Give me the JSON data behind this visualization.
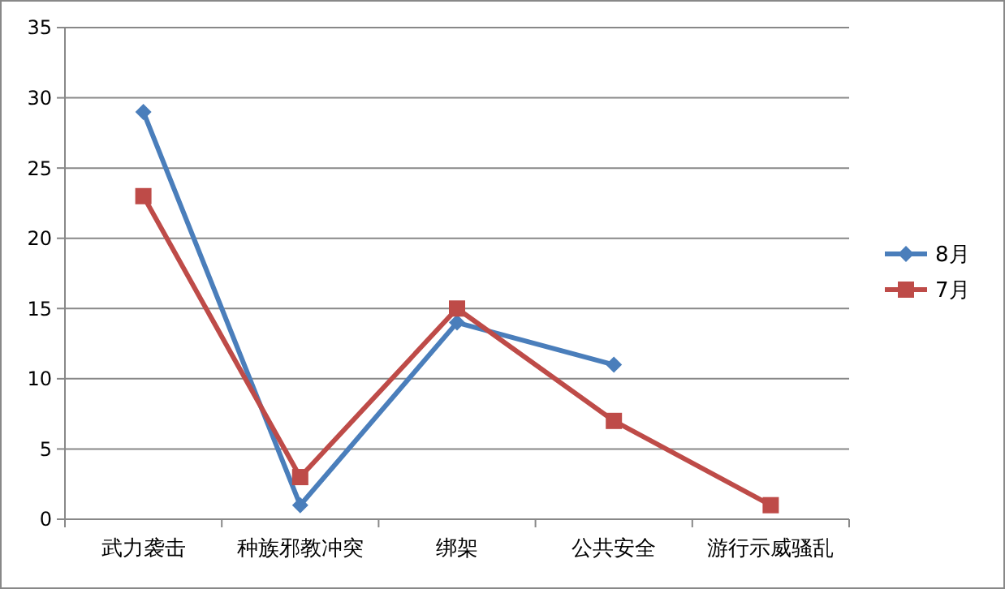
{
  "chart_data": {
    "type": "line",
    "categories": [
      "武力袭击",
      "种族邪教冲突",
      "绑架",
      "公共安全",
      "游行示威骚乱"
    ],
    "series": [
      {
        "name": "8月",
        "color": "#4a7ebb",
        "marker": "diamond",
        "values": [
          29,
          1,
          14,
          11,
          null
        ]
      },
      {
        "name": "7月",
        "color": "#be4b48",
        "marker": "square",
        "values": [
          23,
          3,
          15,
          7,
          1
        ]
      }
    ],
    "ylim": [
      0,
      35
    ],
    "yticks": [
      0,
      5,
      10,
      15,
      20,
      25,
      30,
      35
    ],
    "grid": "y",
    "legend": "right"
  }
}
